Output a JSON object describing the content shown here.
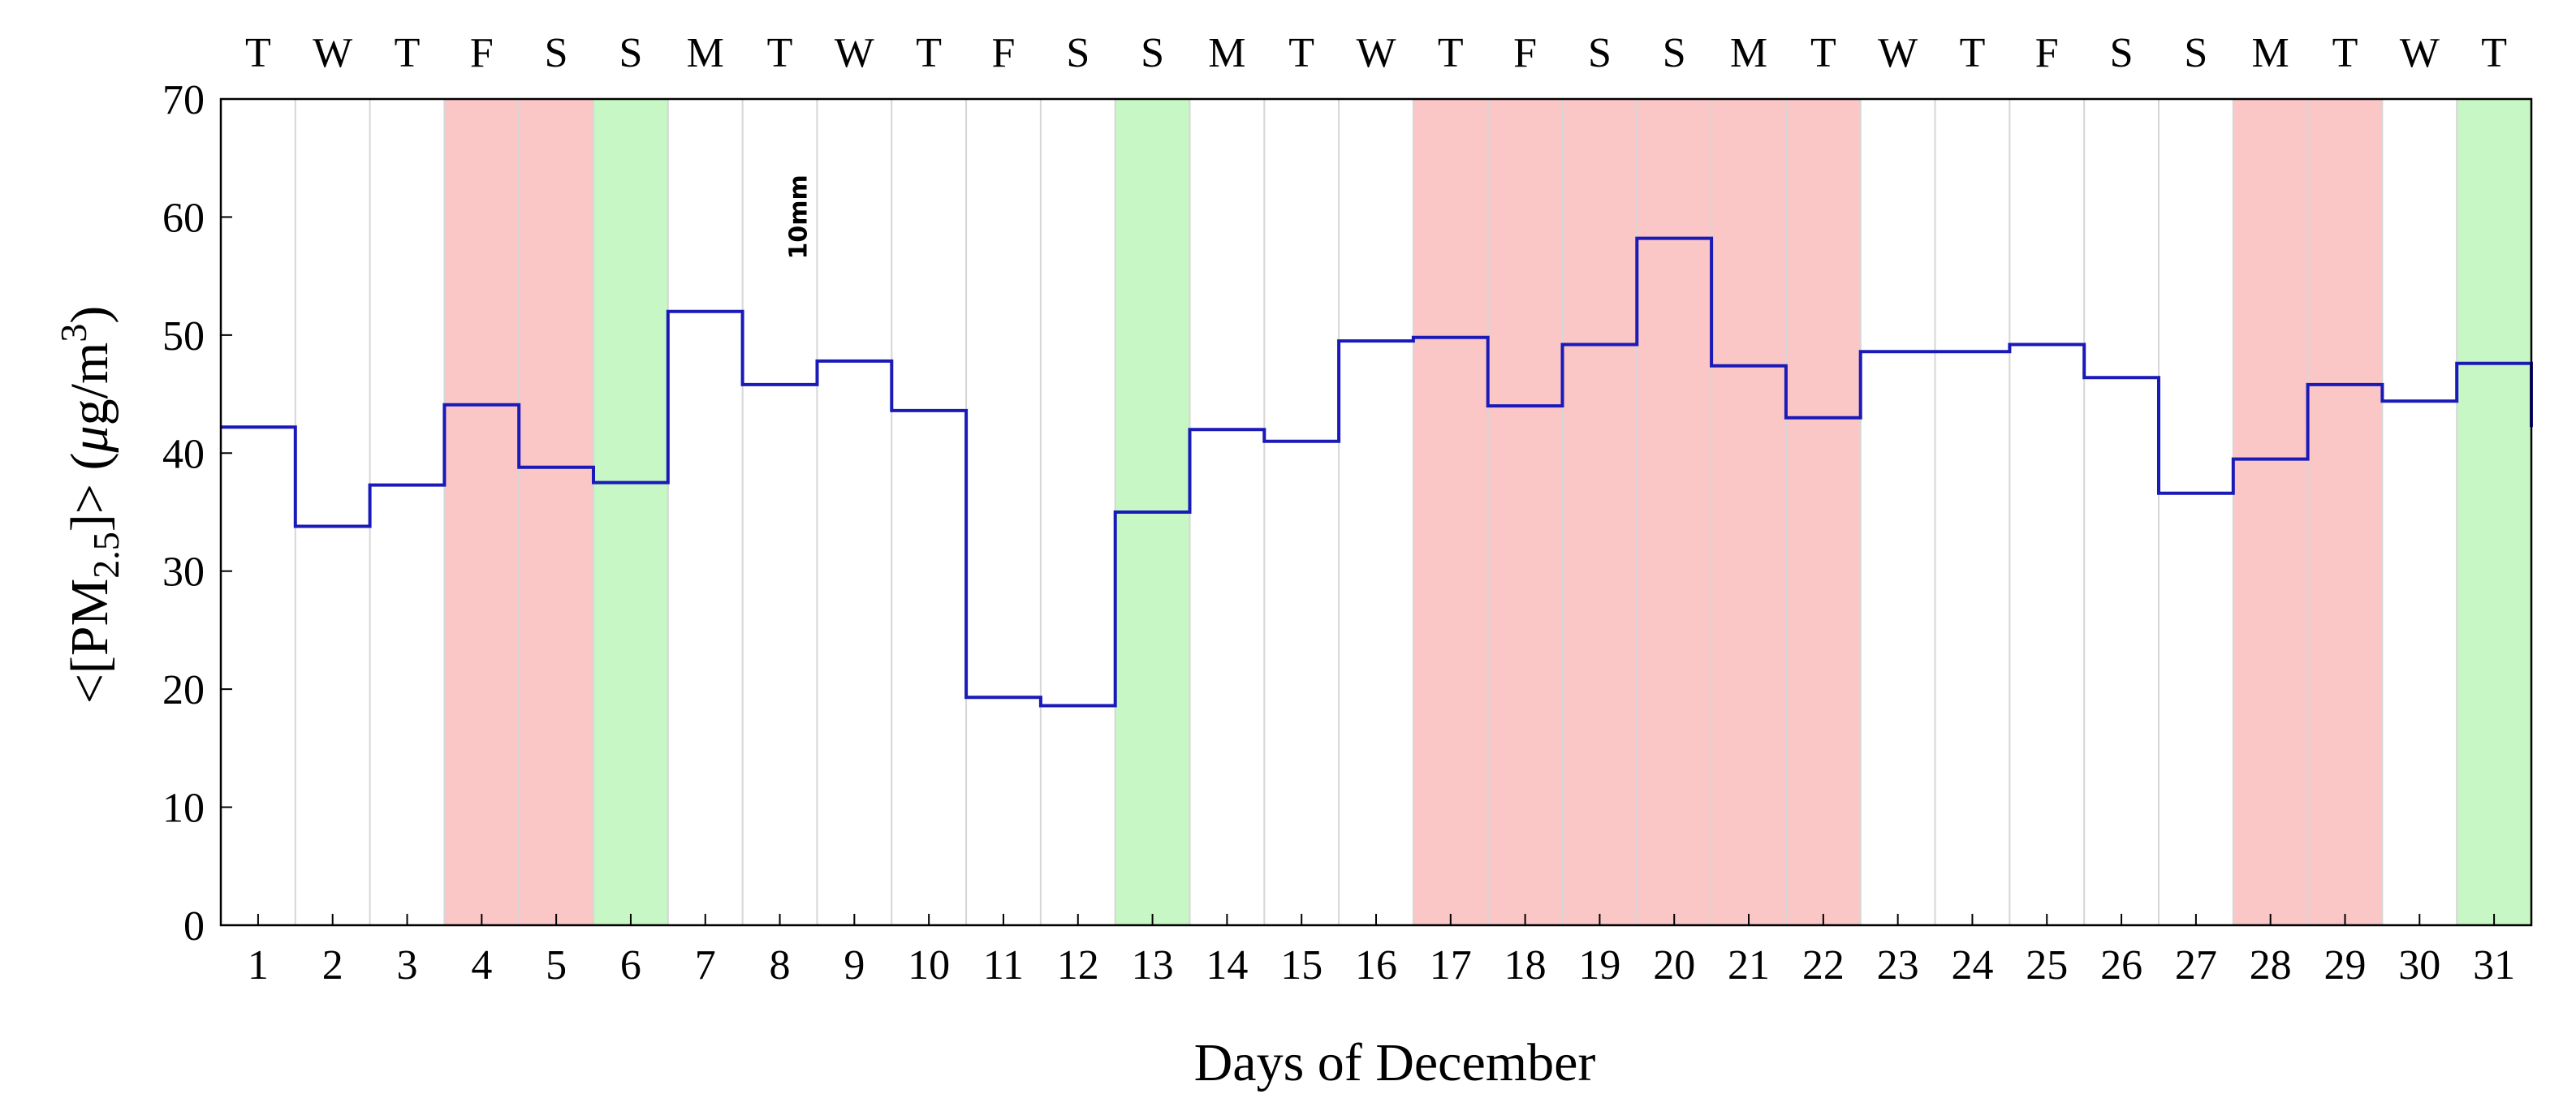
{
  "chart_data": {
    "type": "line",
    "step": true,
    "title": "",
    "xlabel": "Days of December",
    "ylabel_prefix": "<[PM",
    "ylabel_sub": "2.5",
    "ylabel_mid": "]> (",
    "ylabel_mu": "μ",
    "ylabel_unit": "g/m",
    "ylabel_sup": "3",
    "ylabel_suffix": ")",
    "ylim": [
      0,
      70
    ],
    "yticks": [
      0,
      10,
      20,
      30,
      40,
      50,
      60,
      70
    ],
    "xlim": [
      0.5,
      31.5
    ],
    "days": [
      1,
      2,
      3,
      4,
      5,
      6,
      7,
      8,
      9,
      10,
      11,
      12,
      13,
      14,
      15,
      16,
      17,
      18,
      19,
      20,
      21,
      22,
      23,
      24,
      25,
      26,
      27,
      28,
      29,
      30,
      31
    ],
    "weekdays": [
      "T",
      "W",
      "T",
      "F",
      "S",
      "S",
      "M",
      "T",
      "W",
      "T",
      "F",
      "S",
      "S",
      "M",
      "T",
      "W",
      "T",
      "F",
      "S",
      "S",
      "M",
      "T",
      "W",
      "T",
      "F",
      "S",
      "S",
      "M",
      "T",
      "W",
      "T"
    ],
    "values": [
      42.2,
      33.8,
      37.3,
      44.1,
      38.8,
      37.5,
      52.0,
      45.8,
      47.8,
      43.6,
      19.3,
      18.6,
      35.0,
      42.0,
      41.0,
      49.5,
      49.8,
      44.0,
      49.2,
      58.2,
      47.4,
      43.0,
      48.6,
      48.6,
      49.2,
      46.4,
      36.6,
      39.5,
      45.8,
      44.4,
      47.6
    ],
    "end_value": 42.2,
    "highlight_red_days": [
      4,
      5,
      17,
      18,
      19,
      20,
      21,
      22,
      28,
      29
    ],
    "highlight_green_days": [
      6,
      13,
      31
    ],
    "annotation": {
      "text": "10mm",
      "day": 8.25,
      "y": 60
    },
    "colors": {
      "line": "#1a1ab8",
      "red_band": "#fbc6c6",
      "green_band": "#c6f7c4",
      "grid": "#d6d6d6",
      "band_edge": "#c4a4a4"
    },
    "grid": true
  }
}
